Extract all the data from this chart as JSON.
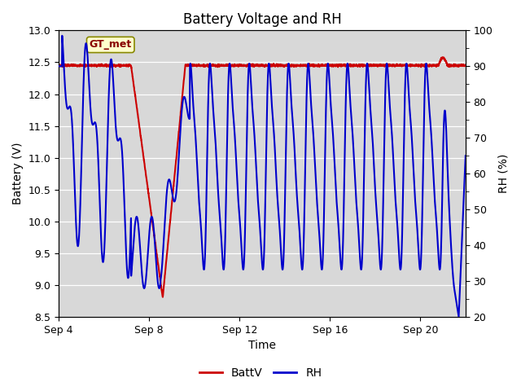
{
  "title": "Battery Voltage and RH",
  "xlabel": "Time",
  "ylabel_left": "Battery (V)",
  "ylabel_right": "RH (%)",
  "ylim_left": [
    8.5,
    13.0
  ],
  "ylim_right": [
    20,
    100
  ],
  "yticks_left": [
    8.5,
    9.0,
    9.5,
    10.0,
    10.5,
    11.0,
    11.5,
    12.0,
    12.5,
    13.0
  ],
  "yticks_right": [
    20,
    30,
    40,
    50,
    60,
    70,
    80,
    90,
    100
  ],
  "xtick_positions": [
    0,
    4,
    8,
    12,
    16
  ],
  "xtick_labels": [
    "Sep 4",
    "Sep 8",
    "Sep 12",
    "Sep 16",
    "Sep 20"
  ],
  "xlim": [
    0,
    18
  ],
  "annotation_text": "GT_met",
  "legend_labels": [
    "BattV",
    "RH"
  ],
  "legend_colors": [
    "#cc0000",
    "#0000cc"
  ],
  "background_color": "#ffffff",
  "plot_bg_color": "#d8d8d8",
  "grid_color": "#ffffff",
  "batt_color": "#cc0000",
  "rh_color": "#0000cc",
  "title_fontsize": 12,
  "axis_label_fontsize": 10,
  "tick_fontsize": 9
}
